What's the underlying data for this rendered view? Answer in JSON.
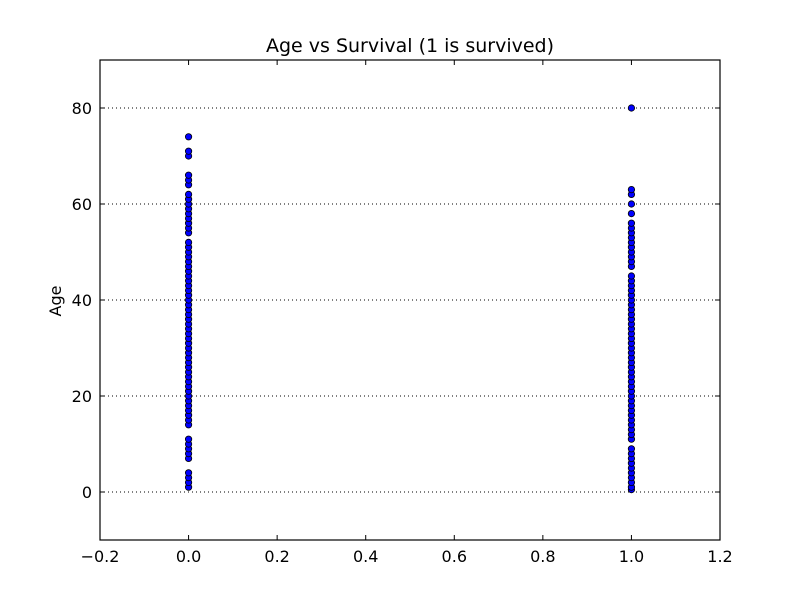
{
  "chart_data": {
    "type": "scatter",
    "title": "Age vs Survival (1 is survived)",
    "xlabel": "",
    "ylabel": "Age",
    "xlim": [
      -0.2,
      1.2
    ],
    "ylim": [
      -10,
      90
    ],
    "xticks": [
      -0.2,
      0.0,
      0.2,
      0.4,
      0.6,
      0.8,
      1.0,
      1.2
    ],
    "xtick_labels": [
      "−0.2",
      "0.0",
      "0.2",
      "0.4",
      "0.6",
      "0.8",
      "1.0",
      "1.2"
    ],
    "yticks": [
      0,
      20,
      40,
      60,
      80
    ],
    "ytick_labels": [
      "0",
      "20",
      "40",
      "60",
      "80"
    ],
    "grid": "horizontal dotted",
    "legend": "none",
    "marker_color": "#0000ff",
    "marker_edge_color": "#000000",
    "series": [
      {
        "x": 0,
        "y": [
          1,
          2,
          3,
          4,
          7,
          8,
          9,
          10,
          11,
          14,
          15,
          16,
          17,
          18,
          19,
          20,
          21,
          22,
          23,
          24,
          25,
          26,
          27,
          28,
          29,
          30,
          31,
          32,
          33,
          34,
          35,
          36,
          37,
          38,
          39,
          40,
          41,
          42,
          43,
          44,
          45,
          46,
          47,
          48,
          49,
          50,
          51,
          52,
          54,
          55,
          56,
          57,
          58,
          59,
          60,
          61,
          62,
          64,
          65,
          66,
          70,
          71,
          74
        ]
      },
      {
        "x": 1,
        "y": [
          0.5,
          1,
          2,
          3,
          4,
          5,
          6,
          7,
          8,
          9,
          11,
          12,
          13,
          14,
          15,
          16,
          17,
          18,
          19,
          20,
          21,
          22,
          23,
          24,
          25,
          26,
          27,
          28,
          29,
          30,
          31,
          32,
          33,
          34,
          35,
          36,
          37,
          38,
          39,
          40,
          41,
          42,
          43,
          44,
          45,
          47,
          48,
          49,
          50,
          51,
          52,
          53,
          54,
          55,
          56,
          58,
          60,
          62,
          63,
          80
        ]
      }
    ]
  }
}
